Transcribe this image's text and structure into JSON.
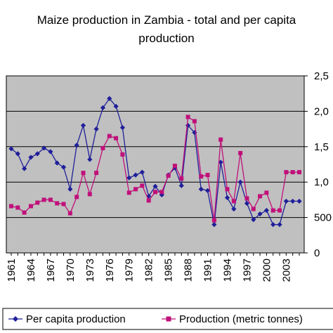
{
  "chart_data": {
    "type": "line",
    "title_line1": "Maize production in Zambia - total and per capita",
    "title_line2": "production",
    "x": [
      1961,
      1962,
      1963,
      1964,
      1965,
      1966,
      1967,
      1968,
      1969,
      1970,
      1971,
      1972,
      1973,
      1974,
      1975,
      1976,
      1977,
      1978,
      1979,
      1980,
      1981,
      1982,
      1983,
      1984,
      1985,
      1986,
      1987,
      1988,
      1989,
      1990,
      1991,
      1992,
      1993,
      1994,
      1995,
      1996,
      1997,
      1998,
      1999,
      2000,
      2001,
      2002,
      2003,
      2004,
      2005
    ],
    "x_tick_labels": [
      "1961",
      "1964",
      "1967",
      "1970",
      "1973",
      "1976",
      "1979",
      "1982",
      "1985",
      "1988",
      "1991",
      "1994",
      "1997",
      "2000",
      "2003"
    ],
    "y_left_ticks": [
      0,
      0.5,
      1.0,
      1.5,
      2.0,
      2.5
    ],
    "y_left_labels": [
      "0",
      "500",
      "1,0",
      "1,5",
      "2,0",
      "2,5"
    ],
    "ylim_left": [
      0,
      2.5
    ],
    "grid": true,
    "legend_position": "bottom",
    "series": [
      {
        "name": "Per capita production",
        "color": "#1f1f9a",
        "marker": "diamond",
        "values": [
          1.47,
          1.4,
          1.19,
          1.35,
          1.4,
          1.48,
          1.43,
          1.27,
          1.21,
          0.9,
          1.52,
          1.8,
          1.32,
          1.75,
          2.05,
          2.18,
          2.07,
          1.77,
          1.06,
          1.1,
          1.14,
          0.8,
          0.94,
          0.82,
          1.1,
          1.2,
          0.95,
          1.8,
          1.7,
          0.9,
          0.88,
          0.4,
          1.28,
          0.78,
          0.62,
          1.0,
          0.7,
          0.47,
          0.55,
          0.6,
          0.4,
          0.4,
          0.73,
          0.73,
          0.73
        ]
      },
      {
        "name": "Production (metric tonnes)",
        "color": "#c0107a",
        "marker": "square",
        "values": [
          0.66,
          0.64,
          0.57,
          0.66,
          0.71,
          0.75,
          0.75,
          0.7,
          0.69,
          0.56,
          0.79,
          1.13,
          0.83,
          1.13,
          1.48,
          1.65,
          1.62,
          1.39,
          0.85,
          0.9,
          0.95,
          0.74,
          0.86,
          0.86,
          1.09,
          1.23,
          1.05,
          1.92,
          1.86,
          1.08,
          1.1,
          0.46,
          1.6,
          0.9,
          0.73,
          1.41,
          0.77,
          0.62,
          0.8,
          0.85,
          0.6,
          0.6,
          1.14,
          1.14,
          1.14
        ]
      }
    ]
  }
}
